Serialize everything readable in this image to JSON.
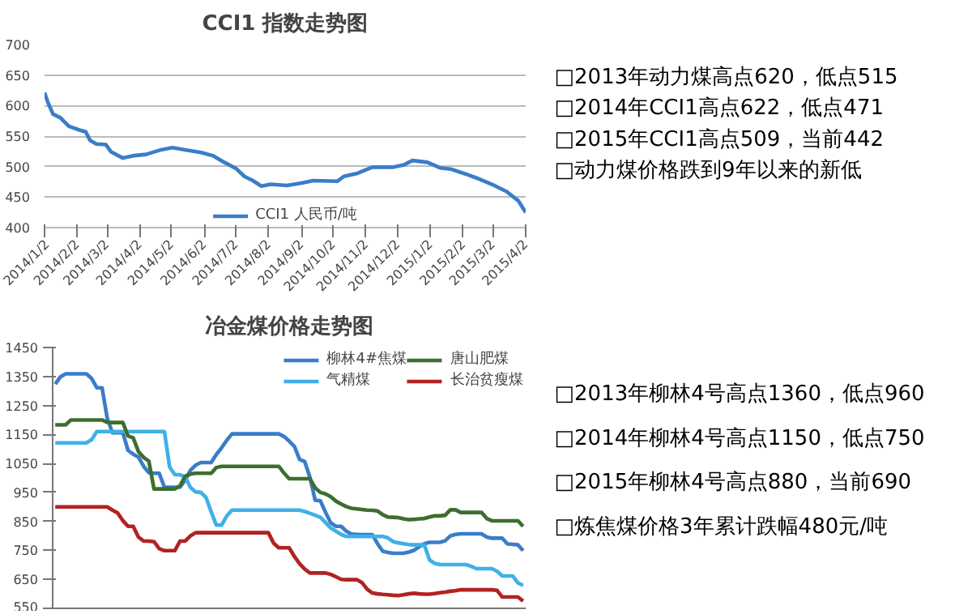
{
  "chart_data": [
    {
      "type": "line",
      "title": "CCI1 指数走势图",
      "legend": "bottom",
      "grid": "y",
      "marker": "none",
      "line_style": "solid",
      "xlim": [
        "2014-01-02",
        "2015-04-02"
      ],
      "ylim": [
        400,
        700
      ],
      "yticks": [
        400,
        450,
        500,
        550,
        600,
        650,
        700
      ],
      "xticks": [
        {
          "value": "2014-01-02",
          "label": "2014/1/2"
        },
        {
          "value": "2014-02-02",
          "label": "2014/2/2"
        },
        {
          "value": "2014-03-02",
          "label": "2014/3/2"
        },
        {
          "value": "2014-04-02",
          "label": "2014/4/2"
        },
        {
          "value": "2014-05-02",
          "label": "2014/5/2"
        },
        {
          "value": "2014-06-02",
          "label": "2014/6/2"
        },
        {
          "value": "2014-07-02",
          "label": "2014/7/2"
        },
        {
          "value": "2014-08-02",
          "label": "2014/8/2"
        },
        {
          "value": "2014-09-02",
          "label": "2014/9/2"
        },
        {
          "value": "2014-10-02",
          "label": "2014/10/2"
        },
        {
          "value": "2014-11-02",
          "label": "2014/11/2"
        },
        {
          "value": "2014-12-02",
          "label": "2014/12/2"
        },
        {
          "value": "2015-01-02",
          "label": "2015/1/2"
        },
        {
          "value": "2015-02-02",
          "label": "2015/2/2"
        },
        {
          "value": "2015-03-02",
          "label": "2015/3/2"
        },
        {
          "value": "2015-04-02",
          "label": "2015/4/2"
        }
      ],
      "series": [
        {
          "name": "CCI1 人民币/吨",
          "color": "#3a7dc9",
          "x": [
            "2014-01-02",
            "2014-01-05",
            "2014-01-10",
            "2014-01-17",
            "2014-01-25",
            "2014-02-04",
            "2014-02-10",
            "2014-02-14",
            "2014-02-20",
            "2014-03-01",
            "2014-03-06",
            "2014-03-17",
            "2014-03-28",
            "2014-04-08",
            "2014-04-21",
            "2014-05-03",
            "2014-05-16",
            "2014-05-30",
            "2014-06-10",
            "2014-06-21",
            "2014-07-02",
            "2014-07-10",
            "2014-07-18",
            "2014-07-26",
            "2014-08-04",
            "2014-08-19",
            "2014-09-02",
            "2014-09-13",
            "2014-10-06",
            "2014-10-12",
            "2014-10-25",
            "2014-11-08",
            "2014-11-27",
            "2014-12-08",
            "2014-12-16",
            "2014-12-30",
            "2015-01-11",
            "2015-01-21",
            "2015-02-04",
            "2015-02-15",
            "2015-03-01",
            "2015-03-15",
            "2015-03-26",
            "2015-04-02"
          ],
          "values": [
            621,
            606,
            586,
            580,
            566,
            560,
            557,
            543,
            537,
            536,
            524,
            514,
            518,
            520,
            527,
            531,
            527,
            523,
            518,
            507,
            497,
            484,
            477,
            468,
            471,
            469,
            473,
            477,
            476,
            484,
            489,
            499,
            499,
            503,
            510,
            507,
            498,
            496,
            488,
            481,
            471,
            459,
            444,
            425
          ]
        }
      ]
    },
    {
      "type": "other",
      "annotations": [
        "□2013年动力煤高点620，低点515",
        "□2014年CCI1高点622，低点471",
        "□2015年CCI1高点509，当前442",
        "□动力煤价格跌到9年以来的新低"
      ]
    },
    {
      "type": "line",
      "title": "冶金煤价格走势图",
      "legend": "top right",
      "grid": false,
      "marker": "none",
      "line_style": "solid",
      "categories": [
        null,
        null,
        null,
        null,
        null,
        null,
        null,
        null,
        null,
        null,
        null,
        null,
        null,
        null,
        null,
        null,
        null,
        null,
        null,
        null,
        null,
        null,
        null,
        null,
        null,
        null,
        null,
        null,
        null,
        null,
        null,
        null,
        null,
        null,
        null,
        null,
        null,
        null,
        null,
        null,
        null,
        null,
        null,
        null,
        null,
        null,
        null,
        null,
        null,
        null,
        null,
        null,
        null,
        null,
        null,
        null,
        null,
        null,
        null,
        null,
        null,
        null,
        null,
        null,
        null,
        null,
        null,
        null,
        null,
        null,
        null,
        null,
        null,
        null,
        null,
        null,
        null,
        null,
        null,
        null,
        null,
        null,
        null,
        null,
        null,
        null,
        null,
        null,
        null,
        null,
        null
      ],
      "ylim": [
        550,
        1450
      ],
      "yticks": [
        550,
        650,
        750,
        850,
        950,
        1050,
        1150,
        1250,
        1350,
        1450
      ],
      "series": [
        {
          "name": "柳林4#焦煤",
          "color": "#3a7dc9",
          "values": [
            1324,
            1349,
            1359,
            1359,
            1359,
            1359,
            1359,
            1343,
            1311,
            1311,
            1206,
            1156,
            1156,
            1156,
            1095,
            1082,
            1072,
            1040,
            1018,
            1016,
            1016,
            968,
            968,
            968,
            968,
            992,
            1026,
            1044,
            1053,
            1053,
            1053,
            1081,
            1104,
            1130,
            1152,
            1152,
            1152,
            1152,
            1152,
            1152,
            1152,
            1152,
            1152,
            1152,
            1143,
            1127,
            1109,
            1064,
            1056,
            1002,
            923,
            921,
            881,
            845,
            833,
            833,
            816,
            806,
            805,
            804,
            804,
            804,
            773,
            747,
            743,
            740,
            740,
            740,
            744,
            750,
            762,
            773,
            778,
            778,
            778,
            783,
            800,
            805,
            807,
            807,
            807,
            807,
            807,
            796,
            792,
            792,
            792,
            772,
            771,
            769,
            749
          ]
        },
        {
          "name": "气精煤",
          "color": "#3fb0e8",
          "values": [
            1121,
            1121,
            1121,
            1121,
            1121,
            1121,
            1121,
            1132,
            1160,
            1160,
            1160,
            1160,
            1160,
            1160,
            1160,
            1160,
            1160,
            1160,
            1160,
            1160,
            1160,
            1160,
            1038,
            1011,
            1011,
            1004,
            967,
            952,
            950,
            933,
            883,
            837,
            837,
            869,
            889,
            889,
            889,
            889,
            889,
            889,
            889,
            889,
            889,
            889,
            889,
            889,
            889,
            889,
            884,
            878,
            871,
            864,
            846,
            827,
            816,
            805,
            798,
            798,
            798,
            798,
            798,
            798,
            798,
            798,
            793,
            780,
            776,
            773,
            770,
            769,
            769,
            769,
            717,
            705,
            701,
            701,
            701,
            701,
            701,
            701,
            695,
            687,
            687,
            687,
            687,
            678,
            662,
            662,
            662,
            638,
            629
          ]
        },
        {
          "name": "唐山肥煤",
          "color": "#3d6e2e",
          "values": [
            1183,
            1183,
            1183,
            1200,
            1200,
            1200,
            1200,
            1200,
            1200,
            1200,
            1192,
            1191,
            1191,
            1191,
            1145,
            1138,
            1091,
            1071,
            1058,
            962,
            962,
            962,
            962,
            962,
            973,
            1006,
            1013,
            1016,
            1016,
            1016,
            1016,
            1036,
            1040,
            1040,
            1040,
            1040,
            1040,
            1040,
            1040,
            1040,
            1040,
            1040,
            1040,
            1040,
            1017,
            997,
            997,
            997,
            997,
            997,
            966,
            950,
            945,
            935,
            920,
            910,
            901,
            895,
            893,
            891,
            889,
            888,
            886,
            873,
            865,
            864,
            863,
            859,
            856,
            857,
            859,
            860,
            865,
            869,
            869,
            871,
            890,
            890,
            881,
            881,
            881,
            881,
            881,
            860,
            852,
            852,
            852,
            852,
            852,
            852,
            833
          ]
        },
        {
          "name": "长治贫瘦煤",
          "color": "#b22222",
          "values": [
            900,
            900,
            900,
            900,
            900,
            900,
            900,
            900,
            900,
            900,
            900,
            889,
            879,
            853,
            833,
            833,
            796,
            782,
            782,
            780,
            756,
            749,
            749,
            749,
            782,
            782,
            800,
            811,
            811,
            811,
            811,
            811,
            811,
            811,
            811,
            811,
            811,
            811,
            811,
            811,
            811,
            811,
            775,
            759,
            759,
            759,
            729,
            704,
            685,
            672,
            672,
            672,
            672,
            667,
            659,
            650,
            649,
            649,
            649,
            639,
            616,
            603,
            600,
            598,
            597,
            595,
            594,
            597,
            600,
            602,
            600,
            599,
            599,
            601,
            604,
            606,
            609,
            611,
            614,
            614,
            614,
            614,
            614,
            614,
            614,
            612,
            589,
            589,
            589,
            589,
            575
          ]
        }
      ]
    },
    {
      "type": "other",
      "annotations": [
        "□2013年柳林4号高点1360，低点960",
        "□2014年柳林4号高点1150，低点750",
        "□2015年柳林4号高点880，当前690",
        "□炼焦煤价格3年累计跌幅480元/吨"
      ]
    }
  ]
}
